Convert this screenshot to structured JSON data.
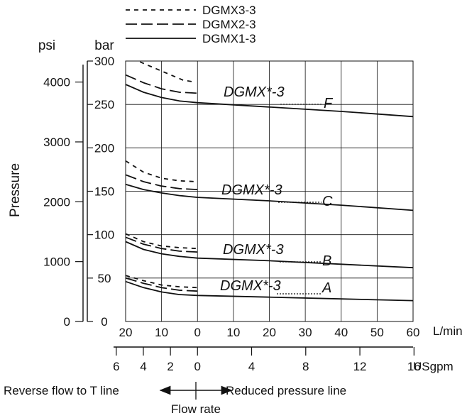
{
  "chart_data": {
    "type": "line",
    "title": "",
    "legend": [
      {
        "name": "DGMX3-3",
        "style": "short-dash"
      },
      {
        "name": "DGMX2-3",
        "style": "long-dash"
      },
      {
        "name": "DGMX1-3",
        "style": "solid"
      }
    ],
    "y_unit_psi": "psi",
    "y_unit_bar": "bar",
    "ylabel": "Pressure",
    "x_unit_lmin": "L/min",
    "x_unit_usgpm": "USgpm",
    "xlim_lmin": [
      -20,
      60
    ],
    "ylim_bar": [
      0,
      300
    ],
    "bar_ticks": [
      "0",
      "50",
      "100",
      "150",
      "200",
      "250",
      "300"
    ],
    "psi_ticks": [
      "0",
      "1000",
      "2000",
      "3000",
      "4000"
    ],
    "lmin_ticks": [
      "20",
      "10",
      "0",
      "10",
      "20",
      "30",
      "40",
      "50",
      "60"
    ],
    "usgpm_ticks": [
      "6",
      "4",
      "2",
      "0",
      "4",
      "8",
      "12",
      "16"
    ],
    "reverse_label": "Reverse flow to T line",
    "reduced_label": "Reduced pressure line",
    "flow_rate_label": "Flow rate",
    "grid": true,
    "groups": [
      {
        "label": "DGMX*-3",
        "code": "F",
        "series": [
          {
            "style": "short-dash",
            "x": [
              -16,
              -12,
              -8,
              -4,
              -1
            ],
            "y": [
              299,
              292,
              285,
              278,
              276
            ]
          },
          {
            "style": "long-dash",
            "x": [
              -20,
              -15,
              -10,
              -5,
              0
            ],
            "y": [
              284,
              275,
              268,
              264,
              263
            ]
          },
          {
            "style": "solid",
            "x": [
              -20,
              -15,
              -10,
              -5,
              0,
              20,
              40,
              60
            ],
            "y": [
              273,
              264,
              258,
              254,
              252,
              247,
              242,
              236
            ]
          }
        ]
      },
      {
        "label": "DGMX*-3",
        "code": "C",
        "series": [
          {
            "style": "short-dash",
            "x": [
              -20,
              -15,
              -10,
              -5,
              0
            ],
            "y": [
              185,
              172,
              165,
              162,
              161
            ]
          },
          {
            "style": "long-dash",
            "x": [
              -20,
              -15,
              -10,
              -5,
              0
            ],
            "y": [
              169,
              161,
              156,
              153,
              152
            ]
          },
          {
            "style": "solid",
            "x": [
              -20,
              -15,
              -10,
              -5,
              0,
              20,
              40,
              60
            ],
            "y": [
              158,
              152,
              148,
              145,
              143,
              139,
              134,
              128
            ]
          }
        ]
      },
      {
        "label": "DGMX*-3",
        "code": "B",
        "series": [
          {
            "style": "short-dash",
            "x": [
              -20,
              -15,
              -10,
              -5,
              0
            ],
            "y": [
              101,
              92,
              87,
              85,
              84
            ]
          },
          {
            "style": "long-dash",
            "x": [
              -20,
              -15,
              -10,
              -5,
              0
            ],
            "y": [
              97,
              89,
              84,
              81,
              80
            ]
          },
          {
            "style": "solid",
            "x": [
              -20,
              -15,
              -10,
              -5,
              0,
              20,
              40,
              60
            ],
            "y": [
              92,
              83,
              78,
              75,
              73,
              70,
              66,
              62
            ]
          }
        ]
      },
      {
        "label": "DGMX*-3",
        "code": "A",
        "series": [
          {
            "style": "short-dash",
            "x": [
              -20,
              -15,
              -10,
              -5,
              0
            ],
            "y": [
              53,
              47,
              42,
              40,
              39
            ]
          },
          {
            "style": "long-dash",
            "x": [
              -20,
              -15,
              -10,
              -5,
              0
            ],
            "y": [
              50,
              44,
              39,
              36,
              35
            ]
          },
          {
            "style": "solid",
            "x": [
              -20,
              -15,
              -10,
              -5,
              0,
              20,
              40,
              60
            ],
            "y": [
              46,
              39,
              34,
              31,
              30,
              28,
              26,
              24
            ]
          }
        ]
      }
    ]
  }
}
